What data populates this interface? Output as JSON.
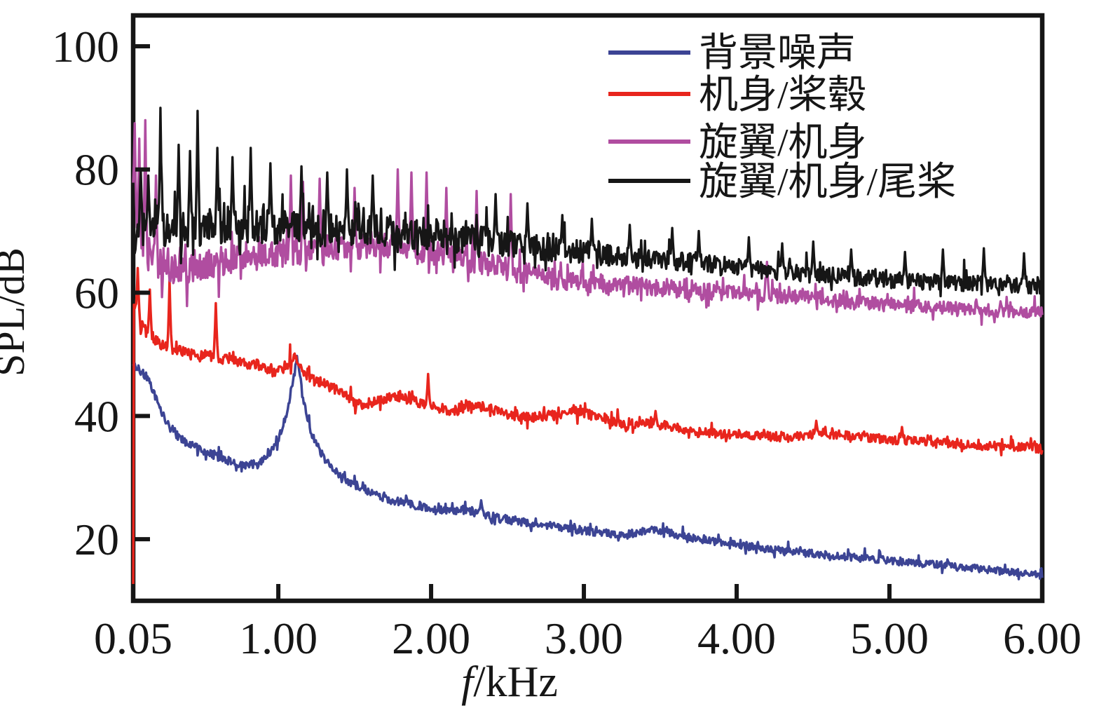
{
  "chart_data": {
    "type": "line",
    "title": "",
    "xlabel": "f/kHz",
    "xlabel_italic": "f",
    "xlabel_rest": "/kHz",
    "ylabel": "SPL/dB",
    "xlim": [
      0.05,
      6.0
    ],
    "ylim": [
      10,
      105
    ],
    "grid": false,
    "legend_position": "top-right-inside",
    "xticks": {
      "values": [
        0.05,
        1,
        2,
        3,
        4,
        5,
        6
      ],
      "labels": [
        "0.05",
        "1.00",
        "2.00",
        "3.00",
        "4.00",
        "5.00",
        "6.00"
      ]
    },
    "yticks": {
      "values": [
        20,
        40,
        60,
        80,
        100
      ],
      "labels": [
        "20",
        "40",
        "60",
        "80",
        "100"
      ]
    },
    "series": [
      {
        "id": "background-noise",
        "name": "背景噪声",
        "color": "#3c4494",
        "line_width": 3.5,
        "seed": 7,
        "trend": [
          [
            0.05,
            48.2
          ],
          [
            0.09,
            47.6
          ],
          [
            0.14,
            46.2
          ],
          [
            0.2,
            43
          ],
          [
            0.26,
            39.5
          ],
          [
            0.33,
            37
          ],
          [
            0.42,
            35.5
          ],
          [
            0.52,
            34.2
          ],
          [
            0.64,
            33
          ],
          [
            0.78,
            31.9
          ],
          [
            0.88,
            32.4
          ],
          [
            0.97,
            34.8
          ],
          [
            1.04,
            38.5
          ],
          [
            1.09,
            45
          ],
          [
            1.12,
            49.6
          ],
          [
            1.16,
            43.5
          ],
          [
            1.21,
            37.5
          ],
          [
            1.3,
            33
          ],
          [
            1.42,
            30
          ],
          [
            1.55,
            28
          ],
          [
            1.7,
            26.6
          ],
          [
            1.9,
            25.4
          ],
          [
            2.1,
            24.7
          ],
          [
            2.3,
            24.6
          ],
          [
            2.45,
            23.4
          ],
          [
            2.65,
            22.5
          ],
          [
            2.85,
            21.9
          ],
          [
            3.05,
            21.2
          ],
          [
            3.25,
            20.7
          ],
          [
            3.45,
            21.5
          ],
          [
            3.65,
            20.5
          ],
          [
            3.85,
            19.6
          ],
          [
            4.05,
            18.9
          ],
          [
            4.3,
            18.1
          ],
          [
            4.55,
            17.5
          ],
          [
            4.8,
            17
          ],
          [
            5.05,
            16.4
          ],
          [
            5.3,
            15.9
          ],
          [
            5.55,
            15.3
          ],
          [
            5.8,
            14.7
          ],
          [
            6.0,
            14.1
          ]
        ],
        "noise_amplitude": [
          [
            0.05,
            1.0
          ],
          [
            6.0,
            0.9
          ]
        ],
        "spikes": [
          [
            2.33,
            26.3
          ]
        ]
      },
      {
        "id": "fuselage-hub",
        "name": "机身/桨毂",
        "color": "#e8251d",
        "line_width": 3.5,
        "seed": 13,
        "trend": [
          [
            0.05,
            10
          ],
          [
            0.054,
            57.5
          ],
          [
            0.08,
            56
          ],
          [
            0.11,
            54.5
          ],
          [
            0.16,
            53
          ],
          [
            0.22,
            51.8
          ],
          [
            0.3,
            50.8
          ],
          [
            0.42,
            50.2
          ],
          [
            0.55,
            49.8
          ],
          [
            0.7,
            49
          ],
          [
            0.85,
            48.2
          ],
          [
            0.98,
            47.6
          ],
          [
            1.06,
            48.2
          ],
          [
            1.11,
            50.2
          ],
          [
            1.17,
            46.8
          ],
          [
            1.3,
            45.2
          ],
          [
            1.42,
            43.8
          ],
          [
            1.52,
            41.8
          ],
          [
            1.62,
            42.2
          ],
          [
            1.75,
            43.2
          ],
          [
            1.88,
            42.6
          ],
          [
            2.0,
            41.5
          ],
          [
            2.12,
            40.6
          ],
          [
            2.25,
            41.6
          ],
          [
            2.38,
            41.2
          ],
          [
            2.52,
            40
          ],
          [
            2.65,
            39.7
          ],
          [
            2.8,
            40.2
          ],
          [
            2.95,
            40.8
          ],
          [
            3.1,
            39.8
          ],
          [
            3.25,
            38.6
          ],
          [
            3.42,
            38.8
          ],
          [
            3.55,
            38.4
          ],
          [
            3.7,
            37.4
          ],
          [
            3.9,
            37.1
          ],
          [
            4.1,
            36.9
          ],
          [
            4.35,
            36.5
          ],
          [
            4.55,
            37.2
          ],
          [
            4.75,
            36.8
          ],
          [
            5.0,
            36.2
          ],
          [
            5.3,
            35.7
          ],
          [
            5.6,
            35.2
          ],
          [
            6.0,
            34.7
          ]
        ],
        "noise_amplitude": [
          [
            0.05,
            1.3
          ],
          [
            1.5,
            1.2
          ],
          [
            6.0,
            1.1
          ]
        ],
        "spikes": [
          [
            0.082,
            64
          ],
          [
            0.16,
            60.5
          ],
          [
            0.29,
            62
          ],
          [
            0.59,
            58.3
          ],
          [
            1.98,
            46.8
          ],
          [
            3.47,
            40.8
          ],
          [
            4.52,
            39.2
          ],
          [
            5.08,
            38.2
          ]
        ]
      },
      {
        "id": "rotor-fuselage",
        "name": "旋翼/机身",
        "color": "#b04da0",
        "line_width": 3.4,
        "seed": 29,
        "trend": [
          [
            0.05,
            74
          ],
          [
            0.08,
            68
          ],
          [
            0.1,
            66.5
          ],
          [
            0.15,
            65.2
          ],
          [
            0.22,
            64.6
          ],
          [
            0.32,
            63.8
          ],
          [
            0.45,
            64
          ],
          [
            0.6,
            65
          ],
          [
            0.8,
            65.8
          ],
          [
            1.0,
            66.3
          ],
          [
            1.2,
            66.8
          ],
          [
            1.4,
            67.3
          ],
          [
            1.6,
            67.8
          ],
          [
            1.8,
            67.8
          ],
          [
            2.0,
            66.8
          ],
          [
            2.2,
            65.6
          ],
          [
            2.4,
            64.4
          ],
          [
            2.6,
            63.2
          ],
          [
            2.8,
            62.2
          ],
          [
            3.0,
            61.7
          ],
          [
            3.2,
            61.3
          ],
          [
            3.5,
            60.8
          ],
          [
            3.8,
            60.2
          ],
          [
            4.1,
            59.7
          ],
          [
            4.4,
            59.2
          ],
          [
            4.7,
            58.6
          ],
          [
            5.0,
            58
          ],
          [
            5.3,
            57.6
          ],
          [
            5.6,
            57.2
          ],
          [
            6.0,
            56.7
          ]
        ],
        "noise_amplitude": [
          [
            0.05,
            3.8
          ],
          [
            1.0,
            3.4
          ],
          [
            2.0,
            3.4
          ],
          [
            3.0,
            2.4
          ],
          [
            4.0,
            1.9
          ],
          [
            6.0,
            1.5
          ]
        ],
        "spikes": [
          [
            0.055,
            81
          ],
          [
            0.062,
            87.5
          ],
          [
            0.09,
            85
          ],
          [
            0.13,
            88
          ],
          [
            0.2,
            79
          ],
          [
            1.08,
            79
          ],
          [
            1.16,
            78
          ],
          [
            1.27,
            78.5
          ],
          [
            1.5,
            77
          ],
          [
            1.78,
            80
          ],
          [
            1.87,
            79.5
          ],
          [
            1.97,
            79.5
          ],
          [
            2.1,
            77
          ],
          [
            2.3,
            76.5
          ],
          [
            2.52,
            76
          ],
          [
            4.2,
            65
          ]
        ]
      },
      {
        "id": "rotor-fuselage-tailrotor",
        "name": "旋翼/机身/尾桨",
        "color": "#161616",
        "line_width": 3.4,
        "seed": 41,
        "trend": [
          [
            0.05,
            66
          ],
          [
            0.08,
            69.5
          ],
          [
            0.12,
            70.3
          ],
          [
            0.3,
            70.3
          ],
          [
            0.6,
            70.6
          ],
          [
            0.9,
            70.6
          ],
          [
            1.2,
            70.4
          ],
          [
            1.5,
            70.2
          ],
          [
            1.8,
            69.8
          ],
          [
            2.0,
            69.3
          ],
          [
            2.2,
            68.8
          ],
          [
            2.4,
            68.3
          ],
          [
            2.6,
            67.6
          ],
          [
            2.8,
            67.1
          ],
          [
            3.0,
            66.6
          ],
          [
            3.2,
            66.1
          ],
          [
            3.4,
            65.6
          ],
          [
            3.6,
            65.1
          ],
          [
            3.8,
            64.6
          ],
          [
            4.0,
            64.1
          ],
          [
            4.2,
            63.6
          ],
          [
            4.4,
            63.2
          ],
          [
            4.6,
            62.8
          ],
          [
            4.8,
            62.4
          ],
          [
            5.0,
            62
          ],
          [
            5.2,
            61.8
          ],
          [
            5.4,
            61.6
          ],
          [
            5.6,
            61.4
          ],
          [
            5.8,
            61.2
          ],
          [
            6.0,
            61
          ]
        ],
        "noise_amplitude": [
          [
            0.05,
            4.6
          ],
          [
            1.2,
            4.4
          ],
          [
            2.0,
            3.8
          ],
          [
            3.0,
            2.9
          ],
          [
            4.0,
            2.3
          ],
          [
            5.0,
            2.0
          ],
          [
            6.0,
            1.9
          ]
        ],
        "spikes": [
          [
            0.1,
            80
          ],
          [
            0.15,
            79
          ],
          [
            0.23,
            90
          ],
          [
            0.35,
            84
          ],
          [
            0.42,
            83
          ],
          [
            0.47,
            89.5
          ],
          [
            0.6,
            83.5
          ],
          [
            0.7,
            82
          ],
          [
            0.82,
            83.5
          ],
          [
            0.95,
            81
          ],
          [
            1.15,
            80.5
          ],
          [
            1.32,
            79.5
          ],
          [
            1.45,
            80
          ],
          [
            1.62,
            79
          ],
          [
            2.42,
            76
          ],
          [
            2.63,
            74.5
          ],
          [
            2.86,
            72.6
          ],
          [
            3.05,
            72
          ],
          [
            3.3,
            71
          ],
          [
            3.58,
            70.5
          ],
          [
            3.75,
            70
          ],
          [
            4.08,
            69
          ],
          [
            4.3,
            68
          ],
          [
            4.5,
            68.3
          ],
          [
            4.75,
            67
          ],
          [
            5.1,
            66.6
          ],
          [
            5.35,
            67
          ],
          [
            5.62,
            67.2
          ],
          [
            5.88,
            66.4
          ]
        ]
      }
    ]
  }
}
